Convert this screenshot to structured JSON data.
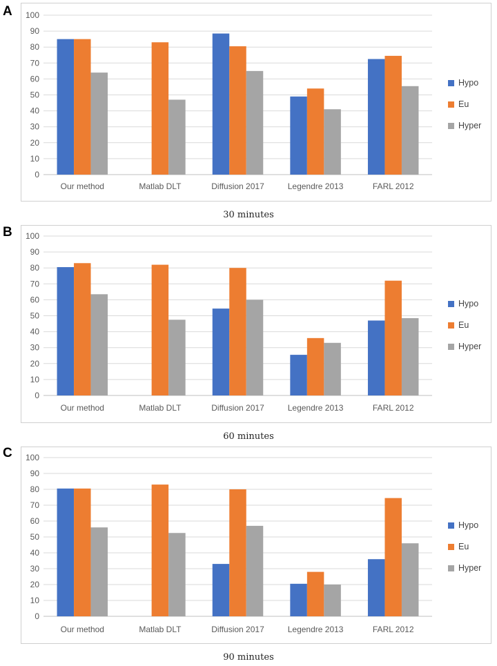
{
  "colors": {
    "Hypo": "#4472c4",
    "Eu": "#ed7d31",
    "Hyper": "#a5a5a5",
    "grid": "#d9d9d9",
    "text": "#595959"
  },
  "chart_data": [
    {
      "type": "bar",
      "panel": "A",
      "caption": "30 minutes",
      "categories": [
        "Our method",
        "Matlab DLT",
        "Diffusion 2017",
        "Legendre 2013",
        "FARL 2012"
      ],
      "yticks": [
        "0",
        "10",
        "20",
        "30",
        "40",
        "50",
        "60",
        "70",
        "80",
        "90",
        "100"
      ],
      "ylim": [
        0,
        100
      ],
      "series": [
        {
          "name": "Hypo",
          "values": [
            85,
            null,
            88.5,
            49,
            72.5
          ]
        },
        {
          "name": "Eu",
          "values": [
            85,
            83,
            80.5,
            54,
            74.5
          ]
        },
        {
          "name": "Hyper",
          "values": [
            64,
            47,
            65,
            41,
            55.5
          ]
        }
      ]
    },
    {
      "type": "bar",
      "panel": "B",
      "caption": "60 minutes",
      "categories": [
        "Our method",
        "Matlab DLT",
        "Diffusion 2017",
        "Legendre 2013",
        "FARL 2012"
      ],
      "yticks": [
        "0",
        "10",
        "20",
        "30",
        "40",
        "50",
        "60",
        "70",
        "80",
        "90",
        "100"
      ],
      "ylim": [
        0,
        100
      ],
      "series": [
        {
          "name": "Hypo",
          "values": [
            80.5,
            null,
            54.5,
            25.5,
            47
          ]
        },
        {
          "name": "Eu",
          "values": [
            83,
            82,
            80,
            36,
            72
          ]
        },
        {
          "name": "Hyper",
          "values": [
            63.5,
            47.5,
            60,
            33,
            48.5
          ]
        }
      ]
    },
    {
      "type": "bar",
      "panel": "C",
      "caption": "90 minutes",
      "categories": [
        "Our method",
        "Matlab DLT",
        "Diffusion 2017",
        "Legendre 2013",
        "FARL 2012"
      ],
      "yticks": [
        "0",
        "10",
        "20",
        "30",
        "40",
        "50",
        "60",
        "70",
        "80",
        "90",
        "100"
      ],
      "ylim": [
        0,
        100
      ],
      "series": [
        {
          "name": "Hypo",
          "values": [
            80.5,
            null,
            33,
            20.5,
            36
          ]
        },
        {
          "name": "Eu",
          "values": [
            80.5,
            83,
            80,
            28,
            74.5
          ]
        },
        {
          "name": "Hyper",
          "values": [
            56,
            52.5,
            57,
            20,
            46
          ]
        }
      ]
    }
  ]
}
